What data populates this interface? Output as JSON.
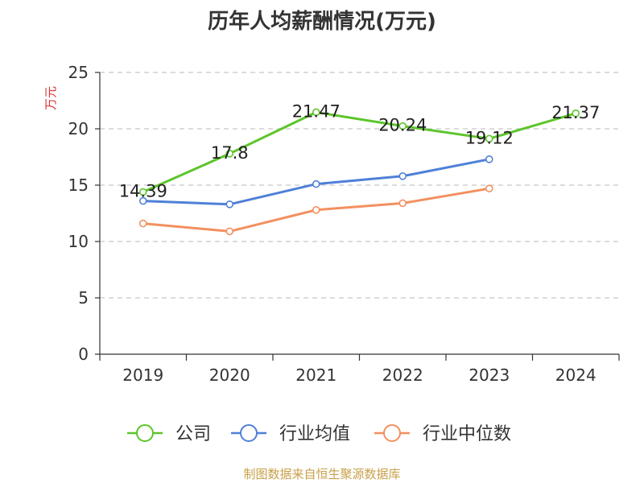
{
  "chart_data": {
    "type": "line",
    "title": "历年人均薪酬情况(万元)",
    "ylabel": "万元",
    "xlabel": "",
    "ylim": [
      0,
      25
    ],
    "yticks": [
      0,
      5,
      10,
      15,
      20,
      25
    ],
    "categories": [
      "2019",
      "2020",
      "2021",
      "2022",
      "2023",
      "2024"
    ],
    "grid": true,
    "legend_position": "bottom",
    "series": [
      {
        "name": "公司",
        "color": "#5cc52a",
        "values": [
          14.39,
          17.8,
          21.47,
          20.24,
          19.12,
          21.37
        ],
        "show_labels": true
      },
      {
        "name": "行业均值",
        "color": "#4f80d8",
        "values": [
          13.6,
          13.3,
          15.1,
          15.8,
          17.3,
          null
        ],
        "show_labels": false
      },
      {
        "name": "行业中位数",
        "color": "#f39060",
        "values": [
          11.6,
          10.9,
          12.8,
          13.4,
          14.7,
          null
        ],
        "show_labels": false
      }
    ]
  },
  "source": "制图数据来自恒生聚源数据库"
}
